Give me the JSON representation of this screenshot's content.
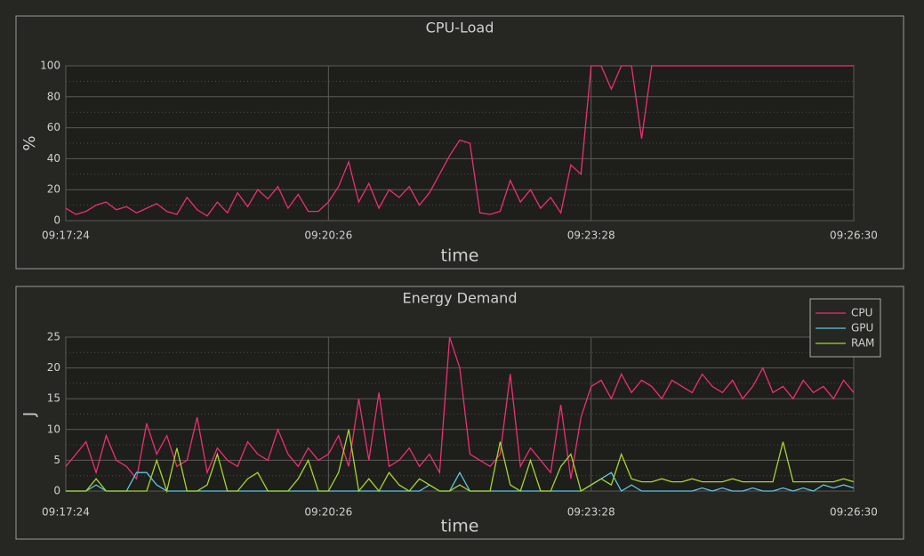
{
  "chart_data": [
    {
      "type": "line",
      "title": "CPU-Load",
      "xlabel": "time",
      "ylabel": "%",
      "color": "#ee2f73",
      "x": [
        "09:17:24",
        "09:17:31",
        "09:17:38",
        "09:17:45",
        "09:17:52",
        "09:17:59",
        "09:18:06",
        "09:18:13",
        "09:18:20",
        "09:18:27",
        "09:18:34",
        "09:18:41",
        "09:18:48",
        "09:18:55",
        "09:19:02",
        "09:19:09",
        "09:19:16",
        "09:19:23",
        "09:19:30",
        "09:19:37",
        "09:19:44",
        "09:19:51",
        "09:19:58",
        "09:20:05",
        "09:20:12",
        "09:20:19",
        "09:20:26",
        "09:20:33",
        "09:20:40",
        "09:20:47",
        "09:20:54",
        "09:21:01",
        "09:21:08",
        "09:21:15",
        "09:21:22",
        "09:21:29",
        "09:21:36",
        "09:21:43",
        "09:21:50",
        "09:21:57",
        "09:22:04",
        "09:22:11",
        "09:22:18",
        "09:22:25",
        "09:22:32",
        "09:22:39",
        "09:22:46",
        "09:22:53",
        "09:23:00",
        "09:23:07",
        "09:23:14",
        "09:23:21",
        "09:23:28",
        "09:23:35",
        "09:23:42",
        "09:23:49",
        "09:23:56",
        "09:24:03",
        "09:24:10",
        "09:24:17",
        "09:24:24",
        "09:24:31",
        "09:24:38",
        "09:24:45",
        "09:24:52",
        "09:24:59",
        "09:25:06",
        "09:25:13",
        "09:25:20",
        "09:25:27",
        "09:25:34",
        "09:25:41",
        "09:25:48",
        "09:25:55",
        "09:26:02",
        "09:26:09",
        "09:26:16",
        "09:26:23",
        "09:26:30"
      ],
      "values": [
        8,
        4,
        6,
        10,
        12,
        7,
        9,
        5,
        8,
        11,
        6,
        4,
        15,
        7,
        3,
        12,
        5,
        18,
        9,
        20,
        14,
        22,
        8,
        17,
        6,
        6,
        12,
        22,
        38,
        12,
        24,
        8,
        20,
        15,
        22,
        10,
        18,
        30,
        42,
        52,
        50,
        5,
        4,
        6,
        26,
        12,
        20,
        8,
        15,
        5,
        36,
        30,
        100,
        100,
        85,
        100,
        100,
        53,
        100,
        100,
        100,
        100,
        100,
        100,
        100,
        100,
        100,
        100,
        100,
        100,
        100,
        100,
        100,
        100,
        100,
        100,
        100,
        100,
        100
      ],
      "xlim": [
        "09:17:24",
        "09:26:30"
      ],
      "xticks": [
        "09:17:24",
        "09:20:26",
        "09:23:28",
        "09:26:30"
      ],
      "ylim": [
        0,
        100
      ],
      "yticks": [
        0,
        20,
        40,
        60,
        80,
        100
      ],
      "grid": true
    },
    {
      "type": "line",
      "title": "Energy Demand",
      "xlabel": "time",
      "ylabel": "J",
      "legend": "upper right",
      "x": [
        "09:17:24",
        "09:17:31",
        "09:17:38",
        "09:17:45",
        "09:17:52",
        "09:17:59",
        "09:18:06",
        "09:18:13",
        "09:18:20",
        "09:18:27",
        "09:18:34",
        "09:18:41",
        "09:18:48",
        "09:18:55",
        "09:19:02",
        "09:19:09",
        "09:19:16",
        "09:19:23",
        "09:19:30",
        "09:19:37",
        "09:19:44",
        "09:19:51",
        "09:19:58",
        "09:20:05",
        "09:20:12",
        "09:20:19",
        "09:20:26",
        "09:20:33",
        "09:20:40",
        "09:20:47",
        "09:20:54",
        "09:21:01",
        "09:21:08",
        "09:21:15",
        "09:21:22",
        "09:21:29",
        "09:21:36",
        "09:21:43",
        "09:21:50",
        "09:21:57",
        "09:22:04",
        "09:22:11",
        "09:22:18",
        "09:22:25",
        "09:22:32",
        "09:22:39",
        "09:22:46",
        "09:22:53",
        "09:23:00",
        "09:23:07",
        "09:23:14",
        "09:23:21",
        "09:23:28",
        "09:23:35",
        "09:23:42",
        "09:23:49",
        "09:23:56",
        "09:24:03",
        "09:24:10",
        "09:24:17",
        "09:24:24",
        "09:24:31",
        "09:24:38",
        "09:24:45",
        "09:24:52",
        "09:24:59",
        "09:25:06",
        "09:25:13",
        "09:25:20",
        "09:25:27",
        "09:25:34",
        "09:25:41",
        "09:25:48",
        "09:25:55",
        "09:26:02",
        "09:26:09",
        "09:26:16",
        "09:26:23",
        "09:26:30"
      ],
      "series": [
        {
          "name": "CPU",
          "color": "#ee2f73",
          "values": [
            4,
            6,
            8,
            3,
            9,
            5,
            4,
            2,
            11,
            6,
            9,
            4,
            5,
            12,
            3,
            7,
            5,
            4,
            8,
            6,
            5,
            10,
            6,
            4,
            7,
            5,
            6,
            9,
            4,
            15,
            5,
            16,
            4,
            5,
            7,
            4,
            6,
            3,
            25,
            20,
            6,
            5,
            4,
            6,
            19,
            4,
            7,
            5,
            3,
            14,
            2,
            12,
            17,
            18,
            15,
            19,
            16,
            18,
            17,
            15,
            18,
            17,
            16,
            19,
            17,
            16,
            18,
            15,
            17,
            20,
            16,
            17,
            15,
            18,
            16,
            17,
            15,
            18,
            16
          ]
        },
        {
          "name": "GPU",
          "color": "#5cc8e6",
          "values": [
            0,
            0,
            0,
            1,
            0,
            0,
            0,
            3,
            3,
            1,
            0,
            0,
            0,
            0,
            0,
            0,
            0,
            0,
            0,
            0,
            0,
            0,
            0,
            0,
            0,
            0,
            0,
            0,
            0,
            0,
            0,
            0,
            0,
            0,
            0,
            0,
            1,
            0,
            0,
            3,
            0,
            0,
            0,
            0,
            0,
            0,
            0,
            0,
            0,
            0,
            0,
            0,
            1,
            2,
            3,
            0,
            1,
            0,
            0,
            0,
            0,
            0,
            0,
            0.5,
            0,
            0.5,
            0,
            0,
            0.5,
            0,
            0,
            0.5,
            0,
            0.5,
            0,
            1,
            0.5,
            1,
            0.5
          ]
        },
        {
          "name": "RAM",
          "color": "#a6d62b",
          "values": [
            0,
            0,
            0,
            2,
            0,
            0,
            0,
            0,
            0,
            5,
            0,
            7,
            0,
            0,
            1,
            6,
            0,
            0,
            2,
            3,
            0,
            0,
            0,
            2,
            5,
            0,
            0,
            3,
            10,
            0,
            2,
            0,
            3,
            1,
            0,
            2,
            1,
            0,
            0,
            1,
            0,
            0,
            0,
            8,
            1,
            0,
            5,
            0,
            0,
            4,
            6,
            0,
            1,
            2,
            1,
            6,
            2,
            1.5,
            1.5,
            2,
            1.5,
            1.5,
            2,
            1.5,
            1.5,
            1.5,
            2,
            1.5,
            1.5,
            1.5,
            1.5,
            8,
            1.5,
            1.5,
            1.5,
            1.5,
            1.5,
            2,
            1.5
          ]
        }
      ],
      "xlim": [
        "09:17:24",
        "09:26:30"
      ],
      "xticks": [
        "09:17:24",
        "09:20:26",
        "09:23:28",
        "09:26:30"
      ],
      "ylim": [
        0,
        25
      ],
      "yticks": [
        0,
        5,
        10,
        15,
        20,
        25
      ],
      "grid": true
    }
  ]
}
